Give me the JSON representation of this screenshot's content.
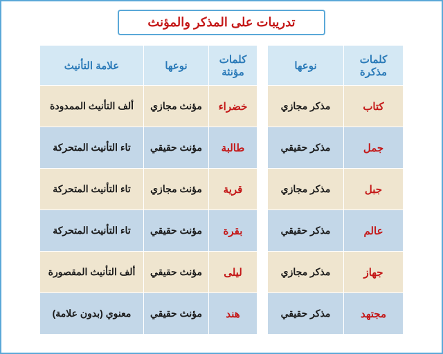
{
  "title": "تدريبات على المذكر والمؤنث",
  "colors": {
    "border": "#5aa8d8",
    "header_bg": "#d4e8f4",
    "header_text": "#2a7ab8",
    "row_beige": "#efe5cf",
    "row_blue": "#c3d7e8",
    "word_color": "#c41818",
    "type_color": "#1a1a1a"
  },
  "masculine_table": {
    "headers": [
      "كلمات مذكرة",
      "نوعها"
    ],
    "rows": [
      {
        "word": "كتاب",
        "type": "مذكر مجازي",
        "band": "beige"
      },
      {
        "word": "جمل",
        "type": "مذكر حقيقي",
        "band": "blue"
      },
      {
        "word": "جبل",
        "type": "مذكر مجازي",
        "band": "beige"
      },
      {
        "word": "عالم",
        "type": "مذكر حقيقي",
        "band": "blue"
      },
      {
        "word": "جهاز",
        "type": "مذكر مجازي",
        "band": "beige"
      },
      {
        "word": "مجتهد",
        "type": "مذكر حقيقي",
        "band": "blue"
      }
    ]
  },
  "feminine_table": {
    "headers": [
      "كلمات مؤنثة",
      "نوعها",
      "علامة التأنيث"
    ],
    "rows": [
      {
        "word": "خضراء",
        "type": "مؤنث مجازي",
        "sign": "ألف التأنيث الممدودة",
        "band": "beige"
      },
      {
        "word": "طالبة",
        "type": "مؤنث حقيقي",
        "sign": "تاء التأنيث المتحركة",
        "band": "blue"
      },
      {
        "word": "قرية",
        "type": "مؤنث مجازي",
        "sign": "تاء التأنيث المتحركة",
        "band": "beige"
      },
      {
        "word": "بقرة",
        "type": "مؤنث حقيقي",
        "sign": "تاء التأنيث المتحركة",
        "band": "blue"
      },
      {
        "word": "ليلى",
        "type": "مؤنث حقيقي",
        "sign": "ألف التأنيث المقصورة",
        "band": "beige"
      },
      {
        "word": "هند",
        "type": "مؤنث حقيقي",
        "sign": "معنوي (بدون علامة)",
        "band": "blue"
      }
    ]
  }
}
